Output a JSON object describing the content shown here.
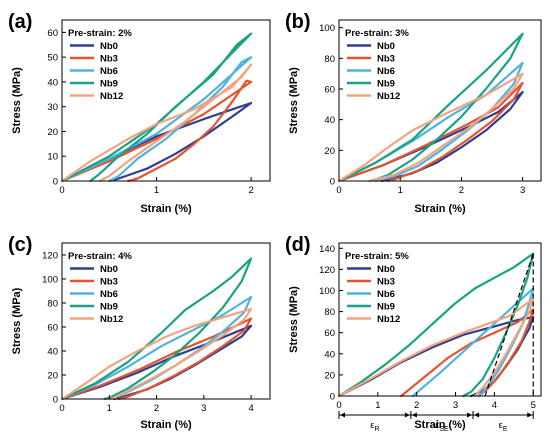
{
  "series_colors": {
    "Nb0": "#2f3f8f",
    "Nb3": "#e2552e",
    "Nb6": "#4fb3e0",
    "Nb9": "#1aa383",
    "Nb12": "#f4a37f"
  },
  "chart_data": [
    {
      "type": "line",
      "label": "(a)",
      "legend_title": "Pre-strain: 2%",
      "xlabel": "Strain (%)",
      "ylabel": "Stress (MPa)",
      "xlim": [
        0,
        2.2
      ],
      "ylim": [
        0,
        65
      ],
      "xticks": [
        0,
        1,
        2
      ],
      "yticks": [
        0,
        10,
        20,
        30,
        40,
        50,
        60
      ],
      "series": [
        {
          "name": "Nb0",
          "x": [
            0,
            0.5,
            1.0,
            1.5,
            2.0,
            1.8,
            1.5,
            1.2,
            0.9,
            0.6,
            0.5
          ],
          "y": [
            0,
            9,
            18,
            25,
            31.5,
            26,
            18,
            11,
            5,
            1,
            0
          ]
        },
        {
          "name": "Nb3",
          "x": [
            0,
            0.5,
            1.0,
            1.5,
            2.0,
            1.95,
            1.8,
            1.6,
            1.4,
            1.2,
            1.0,
            0.8,
            0.7
          ],
          "y": [
            0,
            8,
            17,
            27,
            40,
            40.5,
            32,
            22,
            15,
            9,
            5,
            1,
            0
          ]
        },
        {
          "name": "Nb6",
          "x": [
            0,
            0.5,
            1.0,
            1.5,
            2.0,
            1.9,
            1.7,
            1.4,
            1.1,
            0.8,
            0.6,
            0.5
          ],
          "y": [
            0,
            9,
            19,
            33,
            50,
            48,
            38,
            27,
            17,
            9,
            2,
            0
          ]
        },
        {
          "name": "Nb9",
          "x": [
            0,
            0.5,
            1.0,
            1.5,
            2.0,
            1.85,
            1.6,
            1.2,
            0.9,
            0.6,
            0.4,
            0.3
          ],
          "y": [
            0,
            10,
            23,
            40,
            59.5,
            55,
            43,
            30,
            19,
            10,
            3,
            0
          ]
        },
        {
          "name": "Nb12",
          "x": [
            0,
            0.3,
            0.7,
            1.0,
            1.4,
            1.8,
            2.0,
            1.9,
            1.6,
            1.3,
            1.0,
            0.7,
            0.5,
            0.4
          ],
          "y": [
            0,
            8,
            17,
            23,
            29,
            38,
            47,
            42,
            33,
            24,
            16,
            8,
            2,
            0
          ]
        }
      ]
    },
    {
      "type": "line",
      "label": "(b)",
      "legend_title": "Pre-strain: 3%",
      "xlabel": "Strain (%)",
      "ylabel": "Stress (MPa)",
      "xlim": [
        0,
        3.3
      ],
      "ylim": [
        0,
        105
      ],
      "xticks": [
        0,
        1,
        2,
        3
      ],
      "yticks": [
        0,
        20,
        40,
        60,
        80,
        100
      ],
      "series": [
        {
          "name": "Nb0",
          "x": [
            0,
            0.7,
            1.4,
            2.1,
            2.6,
            3.0,
            2.8,
            2.4,
            2.0,
            1.6,
            1.2,
            0.8,
            0.7
          ],
          "y": [
            0,
            10,
            22,
            35,
            45,
            58,
            47,
            33,
            22,
            12,
            5,
            1,
            0
          ]
        },
        {
          "name": "Nb3",
          "x": [
            0,
            0.7,
            1.4,
            2.1,
            2.6,
            3.0,
            2.85,
            2.5,
            2.1,
            1.7,
            1.3,
            0.9,
            0.8
          ],
          "y": [
            0,
            10,
            23,
            37,
            48,
            64,
            53,
            39,
            27,
            16,
            7,
            1,
            0
          ]
        },
        {
          "name": "Nb6",
          "x": [
            0,
            0.6,
            1.2,
            1.8,
            2.4,
            3.0,
            2.85,
            2.5,
            2.1,
            1.7,
            1.3,
            0.9,
            0.7,
            0.6
          ],
          "y": [
            0,
            12,
            26,
            42,
            56,
            77,
            63,
            47,
            33,
            21,
            10,
            3,
            1,
            0
          ]
        },
        {
          "name": "Nb9",
          "x": [
            0,
            0.6,
            1.2,
            1.8,
            2.4,
            3.0,
            2.8,
            2.4,
            2.0,
            1.6,
            1.2,
            0.8,
            0.6,
            0.5
          ],
          "y": [
            0,
            12,
            27,
            50,
            72,
            96,
            80,
            60,
            42,
            27,
            14,
            4,
            1,
            0
          ]
        },
        {
          "name": "Nb12",
          "x": [
            0,
            0.4,
            0.8,
            1.2,
            1.8,
            2.4,
            3.0,
            2.85,
            2.5,
            2.1,
            1.7,
            1.3,
            0.9,
            0.6,
            0.5
          ],
          "y": [
            0,
            10,
            22,
            33,
            45,
            56,
            70,
            60,
            47,
            34,
            23,
            12,
            4,
            1,
            0
          ]
        }
      ]
    },
    {
      "type": "line",
      "label": "(c)",
      "legend_title": "Pre-strain: 4%",
      "xlabel": "Strain (%)",
      "ylabel": "Stress (MPa)",
      "xlim": [
        0,
        4.4
      ],
      "ylim": [
        0,
        130
      ],
      "xticks": [
        0,
        1,
        2,
        3,
        4
      ],
      "yticks": [
        0,
        20,
        40,
        60,
        80,
        100,
        120
      ],
      "series": [
        {
          "name": "Nb0",
          "x": [
            0,
            0.8,
            1.6,
            2.4,
            3.2,
            4.0,
            3.8,
            3.3,
            2.8,
            2.3,
            1.8,
            1.3,
            1.1
          ],
          "y": [
            0,
            10,
            22,
            36,
            48,
            61,
            52,
            40,
            28,
            17,
            8,
            2,
            0
          ]
        },
        {
          "name": "Nb3",
          "x": [
            0,
            0.8,
            1.6,
            2.4,
            3.2,
            4.0,
            3.85,
            3.4,
            2.9,
            2.4,
            1.9,
            1.4,
            1.2
          ],
          "y": [
            0,
            11,
            24,
            39,
            52,
            67,
            57,
            44,
            31,
            20,
            10,
            2,
            0
          ]
        },
        {
          "name": "Nb6",
          "x": [
            0,
            0.7,
            1.4,
            2.1,
            2.8,
            3.4,
            4.0,
            3.85,
            3.4,
            2.9,
            2.4,
            1.9,
            1.4,
            1.1,
            1.0
          ],
          "y": [
            0,
            12,
            27,
            44,
            58,
            70,
            85,
            72,
            56,
            41,
            28,
            16,
            6,
            1,
            0
          ]
        },
        {
          "name": "Nb9",
          "x": [
            0,
            0.7,
            1.4,
            2.1,
            2.6,
            3.2,
            3.6,
            4.0,
            3.8,
            3.4,
            2.9,
            2.4,
            1.9,
            1.4,
            1.0,
            0.9
          ],
          "y": [
            0,
            13,
            31,
            55,
            74,
            90,
            102,
            117,
            98,
            76,
            55,
            37,
            22,
            9,
            1,
            0
          ]
        },
        {
          "name": "Nb12",
          "x": [
            0,
            0.5,
            1.0,
            1.6,
            2.2,
            2.8,
            3.4,
            4.0,
            3.85,
            3.4,
            2.9,
            2.4,
            1.9,
            1.4,
            1.1,
            1.0
          ],
          "y": [
            0,
            13,
            27,
            40,
            52,
            61,
            68,
            75,
            66,
            53,
            40,
            28,
            17,
            7,
            1,
            0
          ]
        }
      ]
    },
    {
      "type": "line",
      "label": "(d)",
      "legend_title": "Pre-strain: 5%",
      "xlabel": "Strain (%)",
      "ylabel": "Stress (MPa)",
      "xlim": [
        0,
        5.2
      ],
      "ylim": [
        0,
        145
      ],
      "xticks": [
        0,
        1,
        2,
        3,
        4,
        5
      ],
      "yticks": [
        0,
        20,
        40,
        60,
        80,
        100,
        120,
        140
      ],
      "series": [
        {
          "name": "Nb0",
          "x": [
            0,
            0.8,
            1.6,
            2.4,
            3.2,
            4.0,
            4.6,
            5.0,
            4.9,
            4.6,
            4.3,
            4.0,
            3.7,
            3.4
          ],
          "y": [
            0,
            15,
            32,
            46,
            58,
            66,
            72,
            75,
            64,
            44,
            28,
            14,
            5,
            0
          ]
        },
        {
          "name": "Nb3",
          "x": [
            1.6,
            2.2,
            2.8,
            3.4,
            4.0,
            4.6,
            5.0,
            4.9,
            4.7,
            4.4,
            4.1,
            3.8,
            3.6
          ],
          "y": [
            0,
            18,
            36,
            50,
            60,
            70,
            82,
            70,
            52,
            34,
            18,
            6,
            0
          ]
        },
        {
          "name": "Nb6",
          "x": [
            1.9,
            2.6,
            3.2,
            3.8,
            4.4,
            5.0,
            4.9,
            4.7,
            4.4,
            4.1,
            3.8,
            3.6
          ],
          "y": [
            0,
            22,
            42,
            62,
            82,
            102,
            88,
            66,
            44,
            24,
            8,
            0
          ]
        },
        {
          "name": "Nb9",
          "x": [
            0,
            0.6,
            1.2,
            1.8,
            2.4,
            3.0,
            3.5,
            4.0,
            4.5,
            5.0,
            4.85,
            4.6,
            4.3,
            4.0,
            3.7,
            3.4,
            3.2
          ],
          "y": [
            0,
            14,
            30,
            48,
            68,
            88,
            102,
            112,
            122,
            135,
            112,
            86,
            60,
            36,
            16,
            4,
            0
          ]
        },
        {
          "name": "Nb12",
          "x": [
            0,
            0.8,
            1.6,
            2.4,
            3.2,
            3.8,
            4.4,
            5.0,
            4.9,
            4.6,
            4.3,
            4.0,
            3.7,
            3.5
          ],
          "y": [
            0,
            16,
            33,
            48,
            60,
            68,
            76,
            92,
            80,
            60,
            40,
            22,
            8,
            0
          ]
        }
      ],
      "region_labels": [
        "ε_R",
        "ε_SE",
        "ε_E"
      ],
      "region_boundaries": [
        1.85,
        3.45
      ]
    }
  ]
}
